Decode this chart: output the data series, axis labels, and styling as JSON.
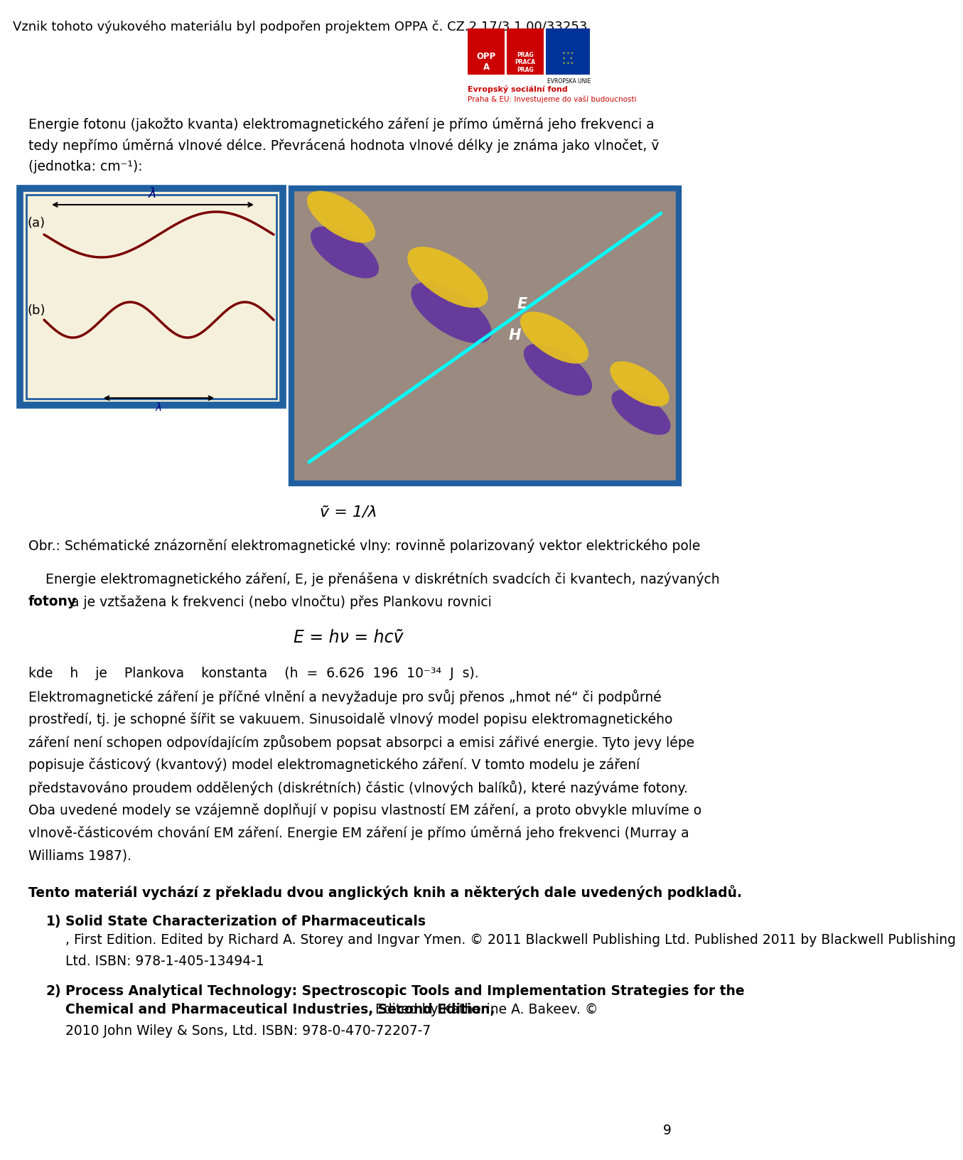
{
  "title_line": "Vznik tohoto výukového materiálu byl podpořen projektem OPPA č. CZ.2.17/3.1.00/33253.",
  "line1": "Energie fotonu (jakožto kvanta) elektromagnetického záření je přímo úměrná jeho frekvenci a",
  "line2": "tedy nepřímo úměrná vlnové délce. Převrácená hodnota vlnové délky je známa jako vlnočet, ṽ",
  "line3": "(jednotka: cm⁻¹):",
  "formula1": "ṽ = 1/λ",
  "caption": "Obr.: Schématické znázornění elektromagnetické vlny: rovinně polarizovaný vektor elektrického pole",
  "p2_line1": "    Energie elektromagnetického záření, E, je přenášena v diskrétních svadcích či kvantech, nazývaných",
  "p2_line2_normal1": "nazývaných ",
  "p2_line2_bold": "fotony",
  "p2_line2_normal2": " a je vztžažena k frekvenci (nebo vlnočtu) přes Plankovu rovnici",
  "formula2": "E = hν = hcṽ",
  "p3_lines": [
    "kde    h    je    Plankova    konstanta    (h  =  6.626  196  10⁻³⁴  J  s).",
    "Elektromagnetické záření je příčné vlnění a nevyžaduje pro svůj přenos „hmot né“ či podpůrné",
    "prostředí, tj. je schopné šířit se vakuuem. Sinusoidalě vlnový model popisu elektromagnetického",
    "záření není schopen odpovídajícím způsobem popsat absorpci a emisi zářivé energie. Tyto jevy lépe",
    "popisuje částicový (kvantový) model elektromagnetického záření. V tomto modelu je záření",
    "představováno proudem oddělených (diskrétních) částic (vlnových balíků), které nazýváme fotony.",
    "Oba uvedené modely se vzájemně doplňují v popisu vlastností EM záření, a proto obvykle mluvíme o",
    "vlnově-částicovém chování EM záření. Energie EM záření je přímo úměrná jeho frekvenci (Murray a",
    "Williams 1987)."
  ],
  "footer_bold": "Tento materiál vychází z překladu dvou anglických knih a některých dale uvedených podkladů.",
  "ref1_bold": "Solid State Characterization of Pharmaceuticals",
  "ref1_rest1": ", First Edition. Edited by Richard A. Storey and Ingvar Ymen. © 2011 Blackwell Publishing Ltd. Published 2011 by Blackwell Publishing",
  "ref1_rest2": "Ltd. ISBN: 978-1-405-13494-1",
  "ref2_bold": "Process Analytical Technology: Spectroscopic Tools and Implementation Strategies for the",
  "ref2_bold2": "Chemical and Pharmaceutical Industries, Second Edition,",
  "ref2_rest": " Edited by Katherine A. Bakeev. © 2010 John Wiley & Sons, Ltd. ISBN: 978-0-470-72207-7",
  "ref2_rest2": "2010 John Wiley & Sons, Ltd. ISBN: 978-0-470-72207-7",
  "page_num": "9",
  "bg_color": "#ffffff",
  "text_color": "#000000",
  "wave_color": "#7a0000",
  "border_color": "#2060a0",
  "panel_bg": "#f5f0dc",
  "right_panel_bg": "#9a8a80",
  "cyan_color": "#00ffff",
  "yellow_color": "#e8c020",
  "purple_color": "#6030a0",
  "logo_red": "#cc0000",
  "logo_blue": "#003399",
  "esf_red": "#cc0000"
}
